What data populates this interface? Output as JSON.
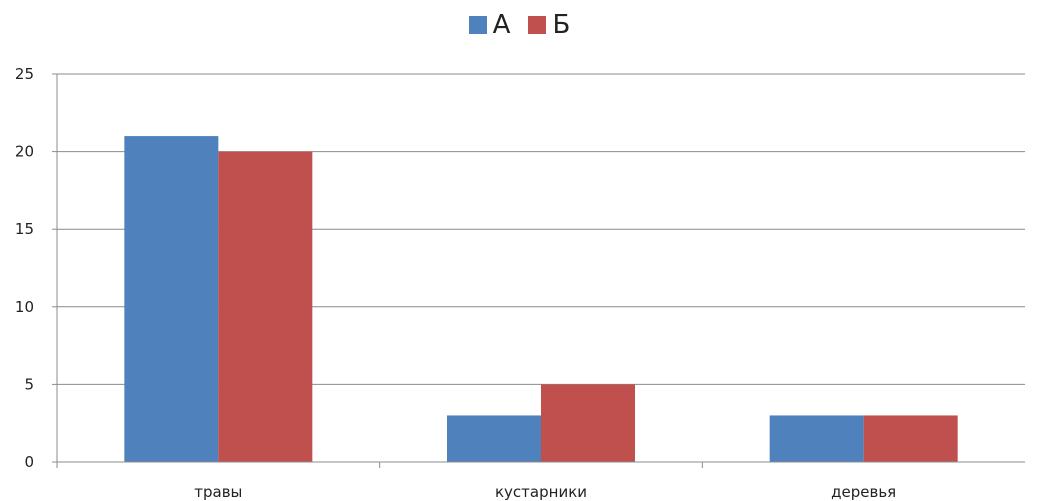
{
  "chart_data": {
    "type": "bar",
    "categories": [
      "травы",
      "кустарники",
      "деревья"
    ],
    "series": [
      {
        "name": "А",
        "values": [
          21,
          3,
          3
        ],
        "color": "#4f81bd"
      },
      {
        "name": "Б",
        "values": [
          20,
          5,
          3
        ],
        "color": "#c0504d"
      }
    ],
    "ylim": [
      0,
      25
    ],
    "yticks": [
      0,
      5,
      10,
      15,
      20,
      25
    ],
    "grid": true,
    "legend_position": "top-center"
  }
}
